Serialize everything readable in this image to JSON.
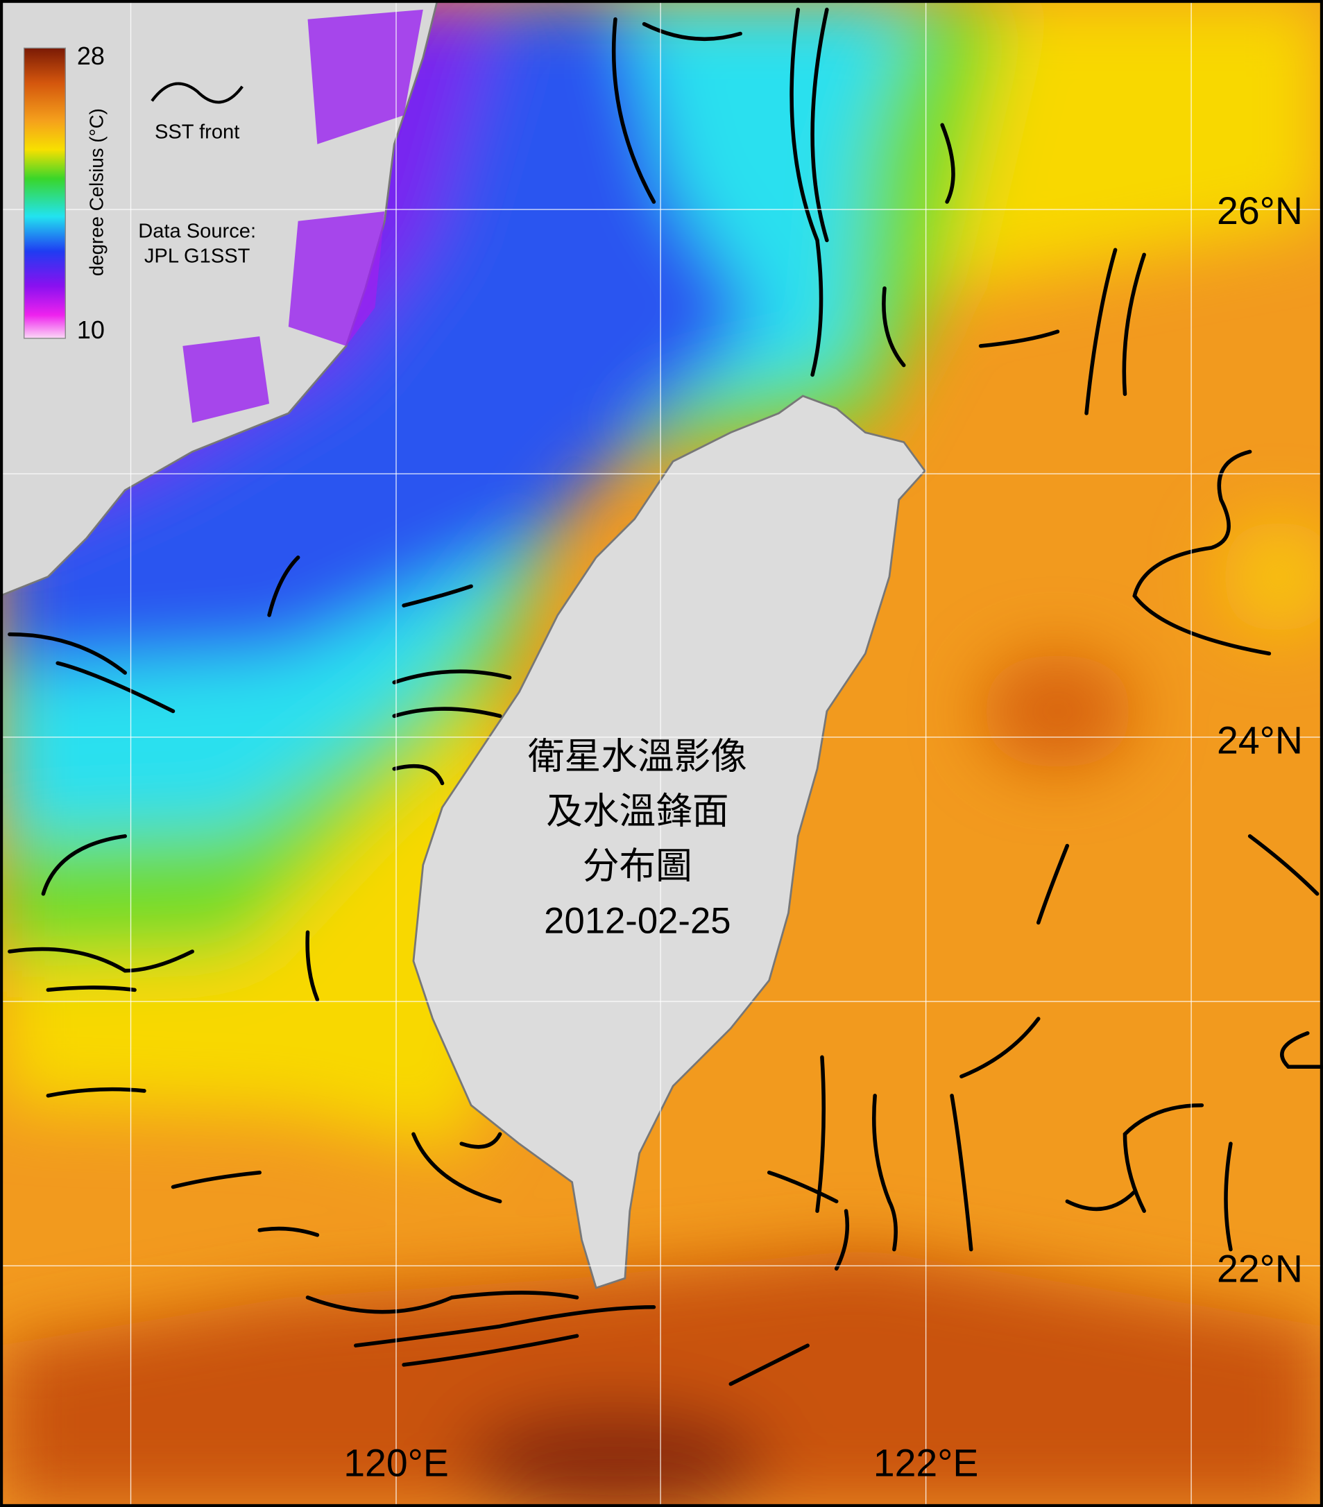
{
  "colorbar": {
    "max": 28,
    "min": 10,
    "label": "degree Celsius (°C)"
  },
  "legend": {
    "label": "SST front"
  },
  "data_source": [
    "Data Source:",
    "JPL G1SST"
  ],
  "title": [
    "衛星水溫影像",
    "及水溫鋒面",
    "分布圖"
  ],
  "date": "2012-02-25",
  "latitude_labels": [
    "26°N",
    "24°N",
    "22°N"
  ],
  "longitude_labels": [
    "120°E",
    "122°E"
  ]
}
